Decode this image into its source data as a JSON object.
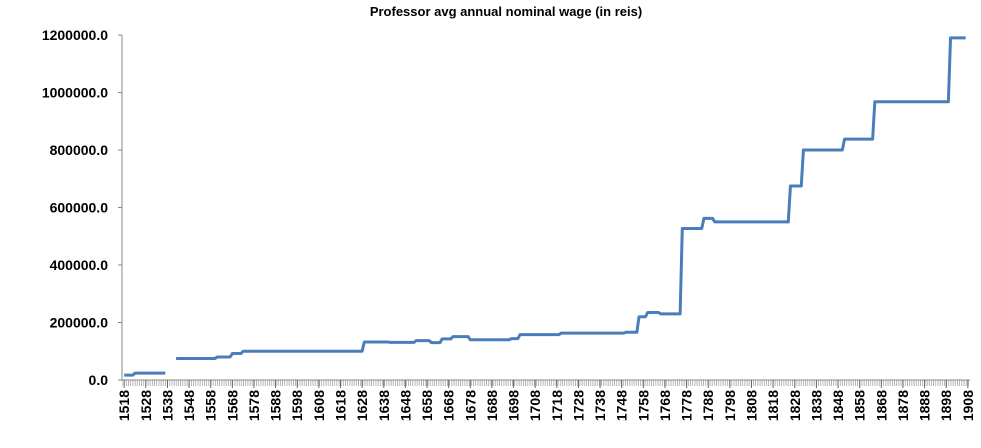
{
  "chart_data": {
    "type": "line",
    "title": "Professor avg annual nominal wage (in reis)",
    "x": [
      1518,
      1522,
      1523,
      1537,
      null,
      1542,
      1560,
      1561,
      1567,
      1568,
      1572,
      1573,
      1628,
      1629,
      1640,
      1641,
      1652,
      1653,
      1659,
      1660,
      1664,
      1665,
      1669,
      1670,
      1677,
      1678,
      1696,
      1697,
      1700,
      1701,
      1719,
      1720,
      1749,
      1750,
      1755,
      1756,
      1759,
      1760,
      1765,
      1766,
      1775,
      1776,
      1785,
      1786,
      1790,
      1791,
      1825,
      1826,
      1831,
      1832,
      1850,
      1851,
      1864,
      1865,
      1899,
      1900,
      1907
    ],
    "values": [
      17000,
      17000,
      24000,
      24000,
      null,
      75000,
      75000,
      80000,
      80000,
      92000,
      92000,
      100000,
      100000,
      132000,
      132000,
      131000,
      131000,
      137000,
      137000,
      130000,
      130000,
      143000,
      143000,
      151000,
      151000,
      140000,
      140000,
      144000,
      144000,
      158000,
      158000,
      163000,
      163000,
      166000,
      166000,
      220000,
      220000,
      235000,
      235000,
      230000,
      230000,
      527000,
      527000,
      562000,
      562000,
      550000,
      550000,
      675000,
      675000,
      800000,
      800000,
      838000,
      838000,
      968000,
      968000,
      1190000,
      1190000
    ],
    "color": "#4a7ebb",
    "xlim": [
      1517,
      1909
    ],
    "xticks": [
      1518,
      1528,
      1538,
      1548,
      1558,
      1568,
      1578,
      1588,
      1598,
      1608,
      1618,
      1628,
      1638,
      1648,
      1658,
      1668,
      1678,
      1688,
      1698,
      1708,
      1718,
      1728,
      1738,
      1748,
      1758,
      1768,
      1778,
      1788,
      1798,
      1808,
      1818,
      1828,
      1838,
      1848,
      1858,
      1868,
      1878,
      1888,
      1898,
      1908
    ],
    "ylim": [
      0,
      1200000
    ],
    "yticks": [
      {
        "value": 0,
        "label": "0.0"
      },
      {
        "value": 200000,
        "label": "200000.0"
      },
      {
        "value": 400000,
        "label": "400000.0"
      },
      {
        "value": 600000,
        "label": "600000.0"
      },
      {
        "value": 800000,
        "label": "800000.0"
      },
      {
        "value": 1000000,
        "label": "1000000.0"
      },
      {
        "value": 1200000,
        "label": "1200000.0"
      }
    ]
  }
}
